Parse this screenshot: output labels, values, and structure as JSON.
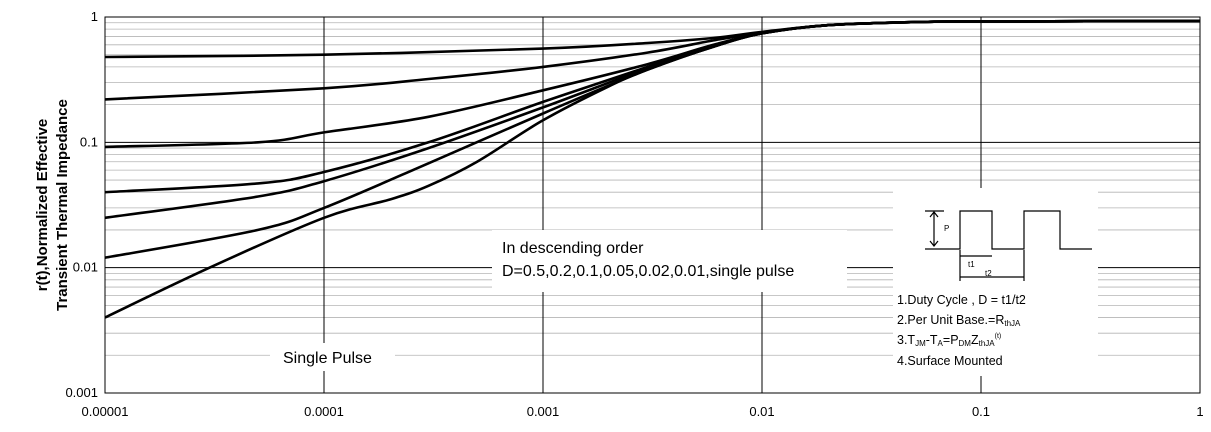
{
  "chart_data": {
    "type": "line",
    "xscale": "log",
    "yscale": "log",
    "xlim": [
      1e-05,
      1
    ],
    "ylim": [
      0.001,
      1
    ],
    "x_ticks": [
      "0.00001",
      "0.0001",
      "0.001",
      "0.01",
      "0.1",
      "1"
    ],
    "y_ticks": [
      "0.001",
      "0.01",
      "0.1",
      "1"
    ],
    "ylabel_line1": "r(t),Normalized Effective",
    "ylabel_line2": "Transient Thermal Impedance",
    "xlabel": "",
    "title": "",
    "grid": true,
    "annotations": {
      "order_line1": "In descending order",
      "order_line2": "D=0.5,0.2,0.1,0.05,0.02,0.01,single pulse",
      "single_pulse": "Single Pulse"
    },
    "series": [
      {
        "x": [
          1e-05,
          0.0001,
          0.001,
          0.003,
          0.006,
          0.01,
          0.02,
          0.05,
          0.1,
          1
        ],
        "values": [
          0.48,
          0.5,
          0.56,
          0.62,
          0.68,
          0.76,
          0.86,
          0.91,
          0.92,
          0.93
        ]
      },
      {
        "x": [
          1e-05,
          0.0001,
          0.0003,
          0.001,
          0.003,
          0.006,
          0.01,
          0.02,
          0.05,
          0.1,
          1
        ],
        "values": [
          0.22,
          0.27,
          0.32,
          0.4,
          0.52,
          0.65,
          0.75,
          0.86,
          0.91,
          0.92,
          0.93
        ]
      },
      {
        "x": [
          1e-05,
          5e-05,
          0.0001,
          0.0003,
          0.001,
          0.003,
          0.006,
          0.01,
          0.02,
          0.05,
          0.1,
          1
        ],
        "values": [
          0.092,
          0.1,
          0.12,
          0.16,
          0.26,
          0.42,
          0.6,
          0.74,
          0.86,
          0.91,
          0.92,
          0.93
        ]
      },
      {
        "x": [
          1e-05,
          5e-05,
          0.0001,
          0.0003,
          0.001,
          0.003,
          0.006,
          0.01,
          0.02,
          0.05,
          0.1,
          1
        ],
        "values": [
          0.04,
          0.047,
          0.058,
          0.1,
          0.21,
          0.4,
          0.59,
          0.74,
          0.86,
          0.91,
          0.92,
          0.93
        ]
      },
      {
        "x": [
          1e-05,
          5e-05,
          0.0001,
          0.0003,
          0.001,
          0.003,
          0.006,
          0.01,
          0.02,
          0.05,
          0.1,
          1
        ],
        "values": [
          0.025,
          0.037,
          0.049,
          0.09,
          0.19,
          0.39,
          0.58,
          0.74,
          0.86,
          0.91,
          0.92,
          0.93
        ]
      },
      {
        "x": [
          1e-05,
          5e-05,
          0.0001,
          0.0003,
          0.001,
          0.003,
          0.006,
          0.01,
          0.02,
          0.05,
          0.1,
          1
        ],
        "values": [
          0.012,
          0.02,
          0.03,
          0.068,
          0.17,
          0.38,
          0.58,
          0.74,
          0.86,
          0.91,
          0.92,
          0.93
        ]
      },
      {
        "x": [
          1e-05,
          3e-05,
          0.0001,
          0.0002,
          0.0003,
          0.0005,
          0.001,
          0.002,
          0.003,
          0.006,
          0.01,
          0.02,
          0.05,
          0.1,
          1
        ],
        "values": [
          0.004,
          0.01,
          0.025,
          0.035,
          0.045,
          0.07,
          0.15,
          0.28,
          0.38,
          0.58,
          0.74,
          0.86,
          0.91,
          0.92,
          0.93
        ]
      }
    ],
    "inset_legend": [
      "1.Duty Cycle , D = t1/t2",
      "2.Per Unit Base.=R",
      "3.T",
      "4.Surface Mounted"
    ],
    "inset_subscripts": {
      "r_sub": "thJA",
      "t_sub1": "JM",
      "mid": "-T",
      "t_sub2": "A",
      "eq": "=P",
      "p_sub": "DM",
      "z": "Z",
      "z_sub": "thJA",
      "z_sup": "(t)"
    },
    "inset_waveform_labels": {
      "t1": "t1",
      "t2": "t2",
      "p": "P"
    }
  }
}
